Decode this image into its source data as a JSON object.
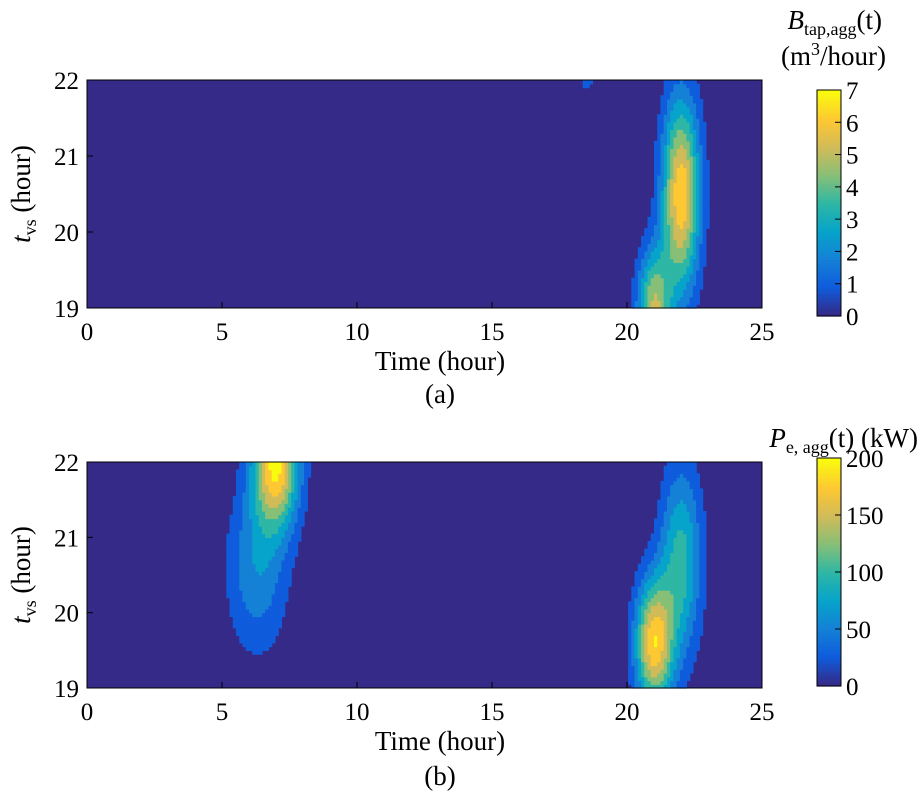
{
  "chart_data": [
    {
      "type": "heatmap",
      "panel_label": "(a)",
      "title": "",
      "xlabel": "Time (hour)",
      "ylabel_main": "t",
      "ylabel_sub": "vs",
      "ylabel_unit": " (hour)",
      "xlim": [
        0,
        25
      ],
      "ylim": [
        19,
        22
      ],
      "xticks": [
        "0",
        "5",
        "10",
        "15",
        "20",
        "25"
      ],
      "yticks": [
        "19",
        "20",
        "21",
        "22"
      ],
      "data_xmax": 24,
      "colorbar_title_main": "B",
      "colorbar_title_sub": "tap,agg",
      "colorbar_title_arg": "(t)",
      "colorbar_unit_pre": "(m",
      "colorbar_unit_sup": "3",
      "colorbar_unit_post": "/hour)",
      "colorbar_range": [
        0,
        7
      ],
      "colorbar_ticks": [
        "0",
        "1",
        "2",
        "3",
        "4",
        "5",
        "6",
        "7"
      ],
      "blobs": [
        {
          "center_x": 21.0,
          "center_y": 19.0,
          "amplitude": 5.2,
          "spread_x": 0.45,
          "spread_y": 0.55
        },
        {
          "center_x": 22.0,
          "center_y": 20.5,
          "amplitude": 6.8,
          "spread_x": 0.5,
          "spread_y": 0.9
        },
        {
          "center_x": 18.5,
          "center_y": 22.0,
          "amplitude": 0.9,
          "spread_x": 0.8,
          "spread_y": 0.45
        }
      ],
      "grid": false
    },
    {
      "type": "heatmap",
      "panel_label": "(b)",
      "title": "",
      "xlabel": "Time (hour)",
      "ylabel_main": "t",
      "ylabel_sub": "vs",
      "ylabel_unit": " (hour)",
      "xlim": [
        0,
        25
      ],
      "ylim": [
        19,
        22
      ],
      "xticks": [
        "0",
        "5",
        "10",
        "15",
        "20",
        "25"
      ],
      "yticks": [
        "19",
        "20",
        "21",
        "22"
      ],
      "data_xmax": 24,
      "colorbar_title_main": "P",
      "colorbar_title_sub": "e, agg",
      "colorbar_title_arg": "(t)",
      "colorbar_unit_pre": " (kW)",
      "colorbar_unit_sup": "",
      "colorbar_unit_post": "",
      "colorbar_range": [
        0,
        200
      ],
      "colorbar_ticks": [
        "0",
        "50",
        "100",
        "150",
        "200"
      ],
      "blobs": [
        {
          "center_x": 7.0,
          "center_y": 22.0,
          "amplitude": 200,
          "spread_x": 0.6,
          "spread_y": 0.6
        },
        {
          "center_x": 6.3,
          "center_y": 20.6,
          "amplitude": 70,
          "spread_x": 0.8,
          "spread_y": 0.8
        },
        {
          "center_x": 21.0,
          "center_y": 19.6,
          "amplitude": 190,
          "spread_x": 0.5,
          "spread_y": 0.6
        },
        {
          "center_x": 22.0,
          "center_y": 20.7,
          "amplitude": 110,
          "spread_x": 0.55,
          "spread_y": 0.9
        },
        {
          "center_x": 19.0,
          "center_y": 22.0,
          "amplitude": 25,
          "spread_x": 0.6,
          "spread_y": 0.35
        }
      ],
      "grid": false
    }
  ],
  "colors": {
    "parula": [
      "#352a87",
      "#0f5cdd",
      "#1481d6",
      "#06a4ca",
      "#2eb7a4",
      "#87bf77",
      "#d1bb59",
      "#fec832",
      "#f9fb0e"
    ],
    "axes": "#000000",
    "background": "#ffffff"
  }
}
